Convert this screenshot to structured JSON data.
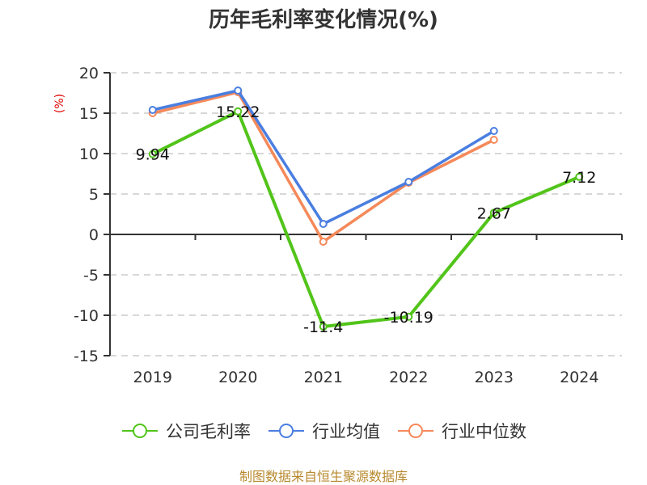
{
  "title": "历年毛利率变化情况(%)",
  "y_axis_label": "(%)",
  "source": "制图数据来自恒生聚源数据库",
  "colors": {
    "company": "#52c41a",
    "industry_avg": "#4a7ee0",
    "industry_median": "#f5895a",
    "axis": "#333333",
    "grid": "#cccccc",
    "source": "#b8892e",
    "ylabel": "#e00000"
  },
  "legend": [
    {
      "label": "公司毛利率",
      "color": "#52c41a"
    },
    {
      "label": "行业均值",
      "color": "#4a7ee0"
    },
    {
      "label": "行业中位数",
      "color": "#f5895a"
    }
  ],
  "chart_data": {
    "type": "line",
    "title": "历年毛利率变化情况(%)",
    "xlabel": "",
    "ylabel": "(%)",
    "categories": [
      "2019",
      "2020",
      "2021",
      "2022",
      "2023",
      "2024"
    ],
    "ylim": [
      -15,
      20
    ],
    "yticks": [
      20,
      15,
      10,
      5,
      0,
      -5,
      -10,
      -15
    ],
    "grid": true,
    "legend_position": "bottom",
    "series": [
      {
        "name": "公司毛利率",
        "values": [
          9.94,
          15.22,
          -11.4,
          -10.19,
          2.67,
          7.12
        ],
        "labels": [
          "9.94",
          "15.22",
          "-11.4",
          "-10.19",
          "2.67",
          "7.12"
        ]
      },
      {
        "name": "行业均值",
        "values": [
          15.4,
          17.8,
          1.3,
          6.5,
          12.8,
          null
        ]
      },
      {
        "name": "行业中位数",
        "values": [
          15.0,
          17.6,
          -0.9,
          6.4,
          11.7,
          null
        ]
      }
    ]
  }
}
